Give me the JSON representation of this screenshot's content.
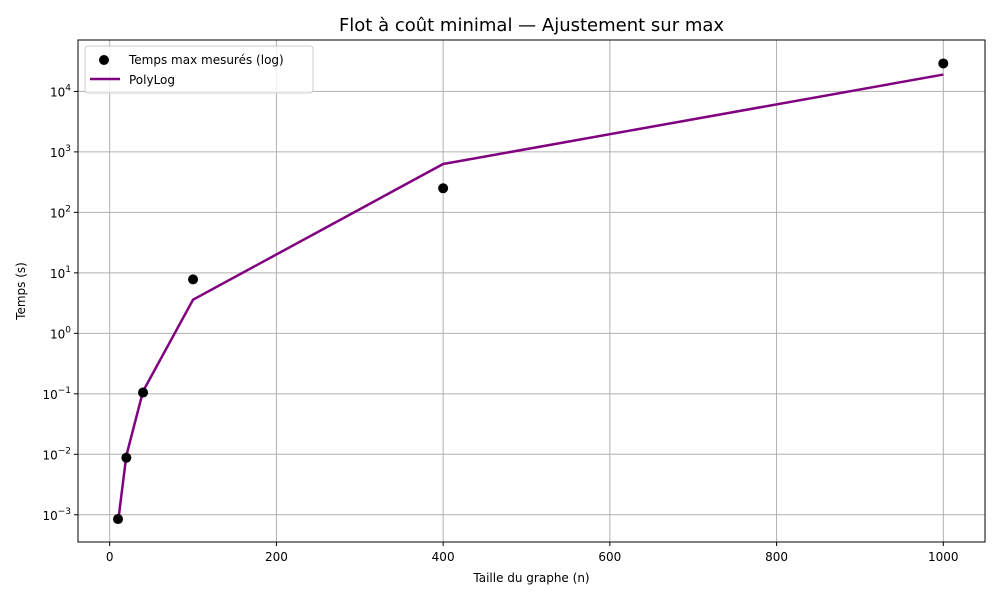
{
  "chart_data": {
    "type": "scatter",
    "title": "Flot à coût minimal — Ajustement sur max",
    "xlabel": "Taille du graphe (n)",
    "ylabel": "Temps (s)",
    "xlim": [
      -38,
      1050
    ],
    "ylim_log10": [
      -3.45,
      4.85
    ],
    "yscale": "log",
    "grid": true,
    "legend_position": "upper-left",
    "x_ticks": [
      0,
      200,
      400,
      600,
      800,
      1000
    ],
    "x_tick_labels": [
      "0",
      "200",
      "400",
      "600",
      "800",
      "1000"
    ],
    "y_tick_exponents": [
      -3,
      -2,
      -1,
      0,
      1,
      2,
      3,
      4
    ],
    "y_tick_base": "10",
    "series": [
      {
        "name": "Temps max mesurés (log)",
        "kind": "scatter",
        "color": "#000000",
        "x": [
          10,
          20,
          40,
          100,
          400,
          1000
        ],
        "y": [
          0.00085,
          0.0088,
          0.105,
          7.8,
          250,
          29000
        ]
      },
      {
        "name": "PolyLog",
        "kind": "line",
        "color": "#800080",
        "x": [
          10,
          20,
          40,
          100,
          400,
          1000
        ],
        "y": [
          0.00075,
          0.0095,
          0.11,
          3.6,
          630,
          19000
        ]
      }
    ]
  }
}
